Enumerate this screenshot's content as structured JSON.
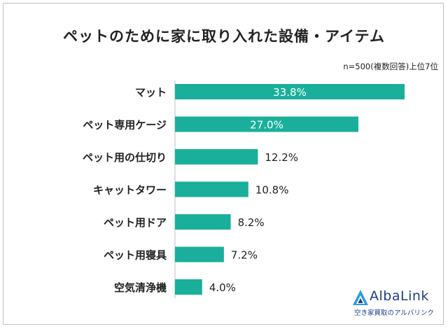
{
  "title": "ペットのために家に取り入れた設備・アイテム",
  "note": "n=500(複数回答)上位7位",
  "brand": {
    "name": "AlbaLink",
    "tagline": "空き家買取のアルバリンク",
    "color": "#1c3f8a"
  },
  "chart_data": {
    "type": "bar",
    "orientation": "horizontal",
    "categories": [
      "マット",
      "ペット専用ケージ",
      "ペット用の仕切り",
      "キャットタワー",
      "ペット用ドア",
      "ペット用寝具",
      "空気清浄機"
    ],
    "values": [
      33.8,
      27.0,
      12.2,
      10.8,
      8.2,
      7.2,
      4.0
    ],
    "labels": [
      "33.8%",
      "27.0%",
      "12.2%",
      "10.8%",
      "8.2%",
      "7.2%",
      "4.0%"
    ],
    "xlim": [
      0,
      33.8
    ],
    "bar_color": "#1aaf9a",
    "grid": false
  }
}
